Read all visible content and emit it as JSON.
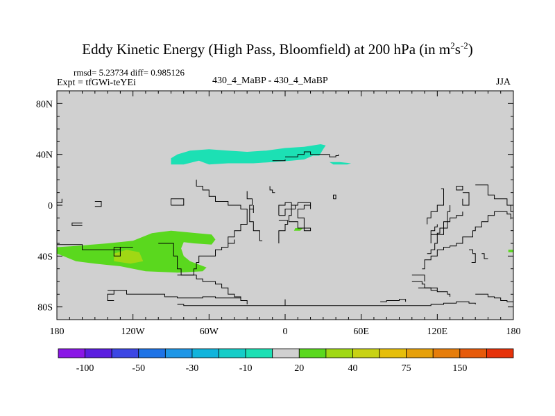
{
  "chart_data": {
    "type": "heatmap",
    "title_main": "Eddy Kinetic Energy (High Pass, Bloomfield) at 200 hPa (in m",
    "title_sup1": "2",
    "title_mid": "s",
    "title_sup2": "-2",
    "title_end": ")",
    "stats_line": "rmsd= 5.23734 diff= 0.985126",
    "expt_line": "Expt = tfGWi-teYEi",
    "case_line": "430_4_MaBP - 430_4_MaBP",
    "season": "JJA",
    "x_ticks": [
      {
        "lon": -180,
        "label": "180"
      },
      {
        "lon": -120,
        "label": "120W"
      },
      {
        "lon": -60,
        "label": "60W"
      },
      {
        "lon": 0,
        "label": "0"
      },
      {
        "lon": 60,
        "label": "60E"
      },
      {
        "lon": 120,
        "label": "120E"
      },
      {
        "lon": 180,
        "label": "180"
      }
    ],
    "y_ticks": [
      {
        "lat": 80,
        "label": "80N"
      },
      {
        "lat": 40,
        "label": "40N"
      },
      {
        "lat": 0,
        "label": "0"
      },
      {
        "lat": -40,
        "label": "40S"
      },
      {
        "lat": -80,
        "label": "80S"
      }
    ],
    "xlim": [
      -180,
      180
    ],
    "ylim": [
      -90,
      90
    ],
    "colorbar": {
      "colors": [
        "#8a17e6",
        "#5b1ee0",
        "#3c46e4",
        "#1e73e6",
        "#1e96e6",
        "#11b4dc",
        "#16cdc8",
        "#1ce0b4",
        "#d0d0d0",
        "#5ad81e",
        "#a0d814",
        "#c8d214",
        "#e6be0a",
        "#e6a00a",
        "#e67d0a",
        "#e65a0a",
        "#e6320a"
      ],
      "labels": [
        {
          "index": 1,
          "label": "-100"
        },
        {
          "index": 3,
          "label": "-50"
        },
        {
          "index": 5,
          "label": "-30"
        },
        {
          "index": 7,
          "label": "-10"
        },
        {
          "index": 9,
          "label": "20"
        },
        {
          "index": 11,
          "label": "40"
        },
        {
          "index": 13,
          "label": "75"
        },
        {
          "index": 15,
          "label": "150"
        }
      ]
    },
    "background_color": "#d0d0d0",
    "regions": [
      {
        "name": "teal-north-pacific-atlantic",
        "color": "#1ce0b4",
        "points": [
          [
            -90,
            37
          ],
          [
            -85,
            40
          ],
          [
            -75,
            43
          ],
          [
            -60,
            44
          ],
          [
            -45,
            43
          ],
          [
            -30,
            42
          ],
          [
            -15,
            43
          ],
          [
            0,
            45
          ],
          [
            15,
            46
          ],
          [
            28,
            48
          ],
          [
            32,
            47
          ],
          [
            30,
            44
          ],
          [
            27,
            39
          ],
          [
            22,
            39
          ],
          [
            15,
            36
          ],
          [
            5,
            35
          ],
          [
            -10,
            34
          ],
          [
            -25,
            33
          ],
          [
            -45,
            33
          ],
          [
            -60,
            32
          ],
          [
            -68,
            35
          ],
          [
            -80,
            32
          ],
          [
            -90,
            32
          ]
        ]
      },
      {
        "name": "teal-small-east",
        "color": "#1ce0b4",
        "points": [
          [
            35,
            34
          ],
          [
            43,
            34
          ],
          [
            52,
            33
          ],
          [
            49,
            32
          ],
          [
            38,
            32
          ]
        ]
      },
      {
        "name": "green-south-pacific",
        "color": "#5ad81e",
        "points": [
          [
            -180,
            -33
          ],
          [
            -165,
            -32
          ],
          [
            -140,
            -30
          ],
          [
            -120,
            -28
          ],
          [
            -105,
            -22
          ],
          [
            -90,
            -20
          ],
          [
            -70,
            -22
          ],
          [
            -58,
            -23
          ],
          [
            -55,
            -27
          ],
          [
            -58,
            -31
          ],
          [
            -72,
            -30
          ],
          [
            -80,
            -29
          ],
          [
            -82,
            -34
          ],
          [
            -80,
            -40
          ],
          [
            -75,
            -44
          ],
          [
            -62,
            -49
          ],
          [
            -65,
            -52
          ],
          [
            -85,
            -53
          ],
          [
            -110,
            -52
          ],
          [
            -130,
            -48
          ],
          [
            -150,
            -46
          ],
          [
            -165,
            -44
          ],
          [
            -175,
            -40
          ],
          [
            -180,
            -38
          ]
        ]
      },
      {
        "name": "yellowgreen-core",
        "color": "#a0d814",
        "points": [
          [
            -135,
            -38
          ],
          [
            -125,
            -35
          ],
          [
            -115,
            -37
          ],
          [
            -112,
            -44
          ],
          [
            -122,
            -46
          ],
          [
            -135,
            -44
          ]
        ]
      },
      {
        "name": "green-speck-indian",
        "color": "#5ad81e",
        "points": [
          [
            8,
            -18
          ],
          [
            14,
            -18
          ],
          [
            12,
            -20
          ],
          [
            7,
            -20
          ]
        ]
      },
      {
        "name": "green-edge-east",
        "color": "#5ad81e",
        "points": [
          [
            176,
            -35
          ],
          [
            180,
            -35
          ],
          [
            180,
            -37
          ],
          [
            176,
            -37
          ]
        ]
      }
    ],
    "coastlines": [
      [
        [
          -180,
          -31
        ],
        [
          -170,
          -31
        ],
        [
          -160,
          -35
        ],
        [
          -150,
          -35
        ],
        [
          -140,
          -35
        ],
        [
          -130,
          -33
        ],
        [
          -120,
          -33
        ]
      ],
      [
        [
          -100,
          -30
        ],
        [
          -95,
          -30
        ],
        [
          -90,
          -30
        ],
        [
          -88,
          -40
        ],
        [
          -85,
          -50
        ],
        [
          -82,
          -55
        ],
        [
          -75,
          -55
        ],
        [
          -72,
          -50
        ],
        [
          -70,
          -45
        ],
        [
          -68,
          -40
        ],
        [
          -58,
          -40
        ],
        [
          -55,
          -35
        ],
        [
          -50,
          -33
        ],
        [
          -45,
          -30
        ],
        [
          -40,
          -27
        ]
      ],
      [
        [
          -45,
          -30
        ],
        [
          -45,
          -25
        ],
        [
          -40,
          -20
        ],
        [
          -35,
          -15
        ],
        [
          -30,
          -8
        ],
        [
          -30,
          -3
        ],
        [
          -35,
          0
        ],
        [
          -45,
          3
        ],
        [
          -55,
          7
        ],
        [
          -60,
          12
        ],
        [
          -65,
          15
        ],
        [
          -70,
          20
        ]
      ],
      [
        [
          -18,
          -28
        ],
        [
          -20,
          -20
        ],
        [
          -25,
          -13
        ],
        [
          -28,
          -8
        ],
        [
          -28,
          -3
        ],
        [
          -25,
          0
        ]
      ],
      [
        [
          -90,
          0
        ],
        [
          -80,
          0
        ],
        [
          -80,
          5
        ],
        [
          -90,
          5
        ],
        [
          -90,
          0
        ]
      ],
      [
        [
          -150,
          -1
        ],
        [
          -145,
          -1
        ],
        [
          -145,
          3
        ],
        [
          -150,
          3
        ]
      ],
      [
        [
          -180,
          2
        ],
        [
          -176,
          2
        ],
        [
          -176,
          5
        ]
      ],
      [
        [
          -160,
          -14
        ],
        [
          -168,
          -14
        ],
        [
          -168,
          -16
        ],
        [
          -160,
          -16
        ]
      ],
      [
        [
          -135,
          -33
        ],
        [
          -130,
          -33
        ],
        [
          -130,
          -40
        ],
        [
          -135,
          -40
        ],
        [
          -135,
          -33
        ]
      ],
      [
        [
          -30,
          11
        ],
        [
          -30,
          5
        ],
        [
          -26,
          0
        ],
        [
          -28,
          -3
        ],
        [
          -25,
          -6
        ]
      ],
      [
        [
          -5,
          -8
        ],
        [
          0,
          -8
        ],
        [
          0,
          -3
        ],
        [
          5,
          0
        ],
        [
          8,
          -3
        ],
        [
          5,
          -8
        ],
        [
          3,
          -13
        ],
        [
          10,
          -18
        ],
        [
          20,
          -20
        ],
        [
          15,
          -10
        ],
        [
          10,
          -3
        ],
        [
          15,
          0
        ],
        [
          20,
          -3
        ],
        [
          20,
          2
        ],
        [
          15,
          2
        ],
        [
          10,
          0
        ],
        [
          5,
          2
        ],
        [
          0,
          0
        ],
        [
          -5,
          -5
        ],
        [
          -5,
          -8
        ]
      ],
      [
        [
          -5,
          -12
        ],
        [
          2,
          -15
        ],
        [
          0,
          -20
        ],
        [
          -5,
          -30
        ]
      ],
      [
        [
          -140,
          -67
        ],
        [
          -130,
          -67
        ],
        [
          -125,
          -70
        ],
        [
          -105,
          -70
        ],
        [
          -95,
          -72
        ],
        [
          -85,
          -73
        ],
        [
          -75,
          -73
        ],
        [
          -65,
          -72
        ],
        [
          -55,
          -73
        ],
        [
          -45,
          -73
        ],
        [
          -35,
          -75
        ],
        [
          -30,
          -75
        ]
      ],
      [
        [
          -135,
          -75
        ],
        [
          -140,
          -75
        ],
        [
          -140,
          -70
        ],
        [
          -135,
          -67
        ]
      ],
      [
        [
          -85,
          -55
        ],
        [
          -75,
          -55
        ],
        [
          -70,
          -58
        ],
        [
          -65,
          -60
        ],
        [
          -60,
          -60
        ],
        [
          -55,
          -62
        ],
        [
          -50,
          -65
        ],
        [
          -45,
          -70
        ],
        [
          -40,
          -72
        ],
        [
          -35,
          -75
        ],
        [
          -30,
          -78
        ]
      ],
      [
        [
          -85,
          -78
        ],
        [
          -80,
          -79
        ],
        [
          -70,
          -79
        ],
        [
          -50,
          -79
        ],
        [
          -30,
          -79
        ],
        [
          -10,
          -79
        ],
        [
          0,
          -79
        ],
        [
          20,
          -79
        ],
        [
          40,
          -79
        ],
        [
          70,
          -79
        ],
        [
          80,
          -79
        ],
        [
          90,
          -79
        ],
        [
          100,
          -79
        ],
        [
          115,
          -78
        ],
        [
          125,
          -77
        ],
        [
          135,
          -76
        ],
        [
          145,
          -77
        ],
        [
          150,
          -78
        ]
      ],
      [
        [
          0,
          -74
        ],
        [
          0,
          -79
        ]
      ],
      [
        [
          75,
          -76
        ],
        [
          80,
          -75
        ],
        [
          90,
          -74
        ],
        [
          95,
          -76
        ]
      ],
      [
        [
          100,
          -60
        ],
        [
          105,
          -60
        ],
        [
          108,
          -62
        ],
        [
          110,
          -65
        ],
        [
          120,
          -68
        ],
        [
          125,
          -68
        ],
        [
          128,
          -70
        ],
        [
          130,
          -72
        ]
      ],
      [
        [
          100,
          -55
        ],
        [
          105,
          -55
        ],
        [
          110,
          -60
        ]
      ],
      [
        [
          108,
          -50
        ],
        [
          110,
          -43
        ],
        [
          115,
          -40
        ],
        [
          120,
          -35
        ],
        [
          125,
          -33
        ],
        [
          130,
          -32
        ],
        [
          135,
          -30
        ],
        [
          140,
          -25
        ],
        [
          145,
          -25
        ],
        [
          148,
          -20
        ],
        [
          150,
          -17
        ],
        [
          155,
          -13
        ],
        [
          160,
          -8
        ],
        [
          165,
          -5
        ],
        [
          170,
          -5
        ],
        [
          175,
          -7
        ],
        [
          178,
          -11
        ]
      ],
      [
        [
          112,
          -38
        ],
        [
          115,
          -35
        ],
        [
          118,
          -30
        ],
        [
          120,
          -22
        ],
        [
          122,
          -18
        ],
        [
          125,
          -13
        ],
        [
          130,
          -10
        ],
        [
          135,
          -8
        ],
        [
          140,
          -5
        ]
      ],
      [
        [
          115,
          -30
        ],
        [
          115,
          -20
        ],
        [
          118,
          -17
        ],
        [
          120,
          -15
        ]
      ],
      [
        [
          115,
          -23
        ],
        [
          120,
          -23
        ],
        [
          125,
          -18
        ],
        [
          128,
          -10
        ],
        [
          128,
          -5
        ],
        [
          130,
          0
        ]
      ],
      [
        [
          123,
          13
        ],
        [
          125,
          10
        ],
        [
          125,
          5
        ],
        [
          125,
          0
        ],
        [
          120,
          -5
        ],
        [
          115,
          -10
        ],
        [
          112,
          -15
        ]
      ],
      [
        [
          140,
          10
        ],
        [
          145,
          8
        ],
        [
          145,
          5
        ],
        [
          145,
          0
        ],
        [
          140,
          0
        ],
        [
          140,
          5
        ]
      ],
      [
        [
          150,
          16
        ],
        [
          158,
          16
        ],
        [
          160,
          12
        ],
        [
          160,
          8
        ],
        [
          165,
          5
        ],
        [
          170,
          5
        ],
        [
          175,
          0
        ],
        [
          178,
          -5
        ],
        [
          180,
          -8
        ]
      ],
      [
        [
          135,
          15
        ],
        [
          135,
          12
        ],
        [
          140,
          12
        ],
        [
          140,
          15
        ],
        [
          135,
          15
        ]
      ],
      [
        [
          145,
          -35
        ],
        [
          148,
          -38
        ],
        [
          150,
          -40
        ],
        [
          150,
          -45
        ],
        [
          147,
          -45
        ]
      ],
      [
        [
          155,
          -38
        ],
        [
          157,
          -42
        ],
        [
          160,
          -42
        ]
      ],
      [
        [
          105,
          -65
        ],
        [
          110,
          -65
        ],
        [
          115,
          -67
        ],
        [
          120,
          -67
        ]
      ],
      [
        [
          150,
          -70
        ],
        [
          155,
          -70
        ],
        [
          160,
          -72
        ],
        [
          165,
          -73
        ],
        [
          170,
          -75
        ],
        [
          175,
          -76
        ],
        [
          180,
          -78
        ]
      ],
      [
        [
          0,
          38
        ],
        [
          5,
          38
        ],
        [
          10,
          38
        ],
        [
          10,
          40
        ],
        [
          15,
          40
        ],
        [
          15,
          42
        ],
        [
          20,
          40
        ],
        [
          25,
          40
        ],
        [
          30,
          40
        ],
        [
          35,
          38
        ],
        [
          40,
          39
        ],
        [
          42,
          40
        ]
      ],
      [
        [
          -10,
          35
        ],
        [
          -5,
          35
        ],
        [
          0,
          36
        ]
      ],
      [
        [
          38,
          5
        ],
        [
          40,
          5
        ],
        [
          40,
          8
        ],
        [
          38,
          8
        ],
        [
          38,
          5
        ]
      ],
      [
        [
          -8,
          10
        ],
        [
          -10,
          12
        ],
        [
          -12,
          15
        ]
      ]
    ]
  }
}
